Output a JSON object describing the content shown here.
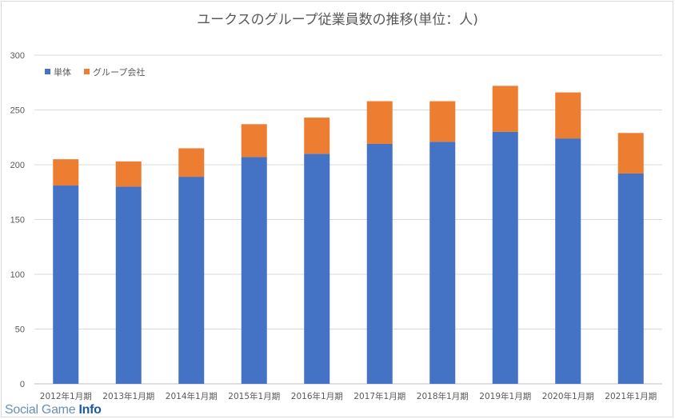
{
  "chart_data": {
    "type": "bar",
    "stacked": true,
    "title": "ユークスのグループ従業員数の推移(単位：人)",
    "categories": [
      "2012年1月期",
      "2013年1月期",
      "2014年1月期",
      "2015年1月期",
      "2016年1月期",
      "2017年1月期",
      "2018年1月期",
      "2019年1月期",
      "2020年1月期",
      "2021年1月期"
    ],
    "series": [
      {
        "name": "単体",
        "color": "#4472c4",
        "values": [
          181,
          180,
          189,
          207,
          210,
          219,
          221,
          230,
          224,
          192
        ]
      },
      {
        "name": "グループ会社",
        "color": "#ed7d31",
        "values": [
          24,
          23,
          26,
          30,
          33,
          39,
          37,
          42,
          42,
          37
        ]
      }
    ],
    "ylim": [
      0,
      300
    ],
    "yticks": [
      0,
      50,
      100,
      150,
      200,
      250,
      300
    ],
    "grid": true,
    "legend": "top-left"
  },
  "watermark": {
    "part1": "Social Game",
    "part2": "Info"
  }
}
